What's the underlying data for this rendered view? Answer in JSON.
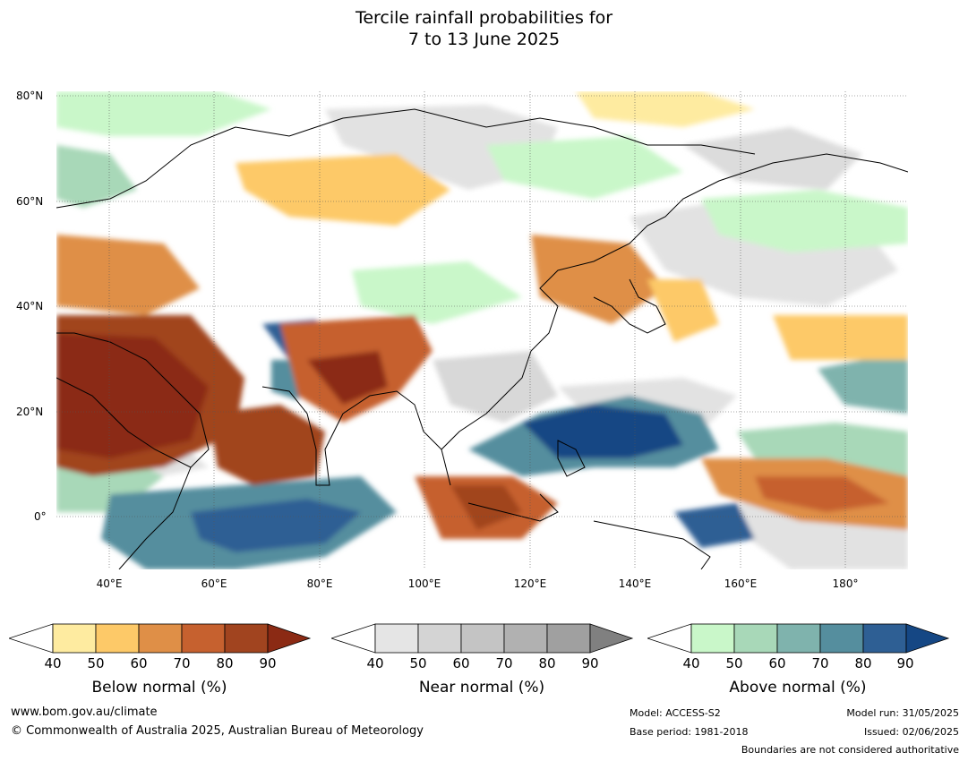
{
  "title": {
    "line1": "Tercile rainfall probabilities for",
    "line2": "7 to 13 June 2025"
  },
  "map": {
    "lat_labels": [
      "80°N",
      "60°N",
      "40°N",
      "20°N",
      "0°"
    ],
    "lon_labels": [
      "40°E",
      "60°E",
      "80°E",
      "100°E",
      "120°E",
      "140°E",
      "160°E",
      "180°"
    ],
    "extent_lon": [
      30,
      192
    ],
    "extent_lat": [
      -10,
      80
    ]
  },
  "colorbars": [
    {
      "title": "Below normal (%)",
      "ticks": [
        "40",
        "50",
        "60",
        "70",
        "80",
        "90"
      ],
      "colors": [
        "#ffffff",
        "#feeba0",
        "#fdc968",
        "#df8f47",
        "#c6612f",
        "#a1441f",
        "#8b2a14"
      ]
    },
    {
      "title": "Near normal (%)",
      "ticks": [
        "40",
        "50",
        "60",
        "70",
        "80",
        "90"
      ],
      "colors": [
        "#ffffff",
        "#e5e5e5",
        "#d4d4d4",
        "#c4c4c4",
        "#b1b1b1",
        "#a0a0a0",
        "#808080"
      ]
    },
    {
      "title": "Above normal (%)",
      "ticks": [
        "40",
        "50",
        "60",
        "70",
        "80",
        "90"
      ],
      "colors": [
        "#ffffff",
        "#c9f7c9",
        "#a8d8b8",
        "#7fb3ad",
        "#558e9e",
        "#2e5f94",
        "#154784"
      ]
    }
  ],
  "footer": {
    "website": "www.bom.gov.au/climate",
    "copyright": "© Commonwealth of Australia 2025, Australian Bureau of Meteorology",
    "model": "Model: ACCESS-S2",
    "base_period": "Base period: 1981-2018",
    "model_run": "Model run: 31/05/2025",
    "issued": "Issued: 02/06/2025",
    "disclaimer": "Boundaries are not considered authoritative"
  }
}
